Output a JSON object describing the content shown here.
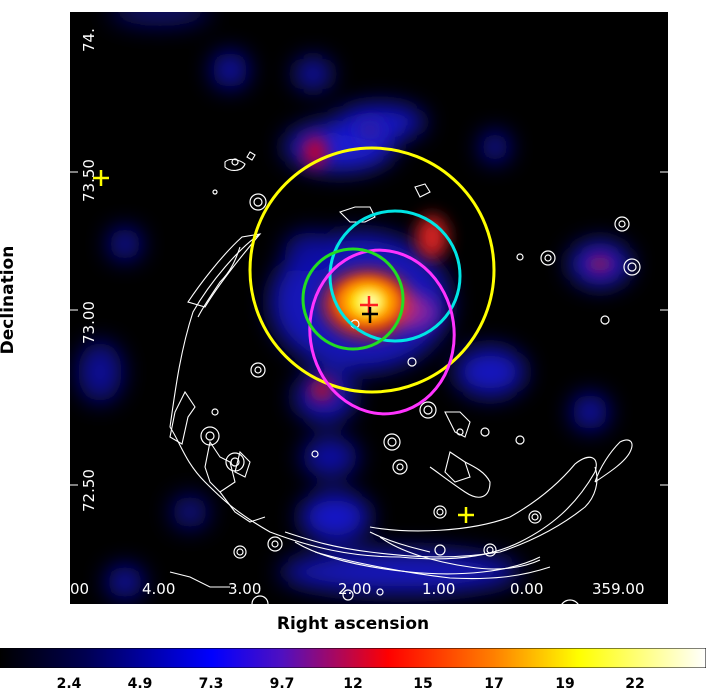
{
  "axes": {
    "xlabel": "Right ascension",
    "ylabel": "Declination",
    "x_ticks": [
      "00",
      "4.00",
      "3.00",
      "2.00",
      "1.00",
      "0.00",
      "359.00"
    ],
    "y_ticks": [
      "74.",
      "73.50",
      "73.00",
      "72.50"
    ]
  },
  "colorbar": {
    "labels": [
      "2.4",
      "4.9",
      "7.3",
      "9.7",
      "12",
      "15",
      "17",
      "19",
      "22"
    ],
    "colormap": [
      "#000000",
      "#0000ff",
      "#ff0000",
      "#ffff00",
      "#ffffff"
    ]
  },
  "overlay_colors": {
    "yellow": "#ffff00",
    "cyan": "#00e5e5",
    "magenta": "#ff33ff",
    "green": "#22dd22",
    "red": "#ff2020",
    "black": "#000000",
    "contours": "#ffffff"
  }
}
